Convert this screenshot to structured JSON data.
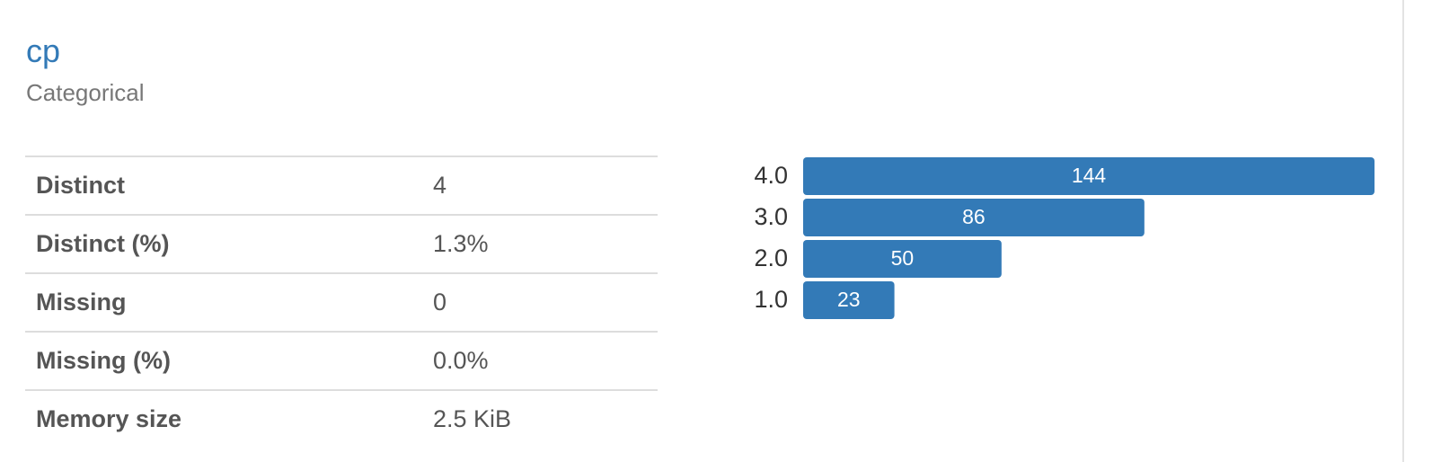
{
  "header": {
    "title": "cp",
    "subtitle": "Categorical"
  },
  "table": {
    "rows": [
      [
        "Distinct",
        "4"
      ],
      [
        "Distinct (%)",
        "1.3%"
      ],
      [
        "Missing",
        "0"
      ],
      [
        "Missing (%)",
        "0.0%"
      ],
      [
        "Memory size",
        "2.5 KiB"
      ]
    ]
  },
  "chart_data": {
    "type": "bar",
    "orientation": "horizontal",
    "categories": [
      "4.0",
      "3.0",
      "2.0",
      "1.0"
    ],
    "values": [
      144,
      86,
      50,
      23
    ],
    "color": "#337ab7"
  }
}
